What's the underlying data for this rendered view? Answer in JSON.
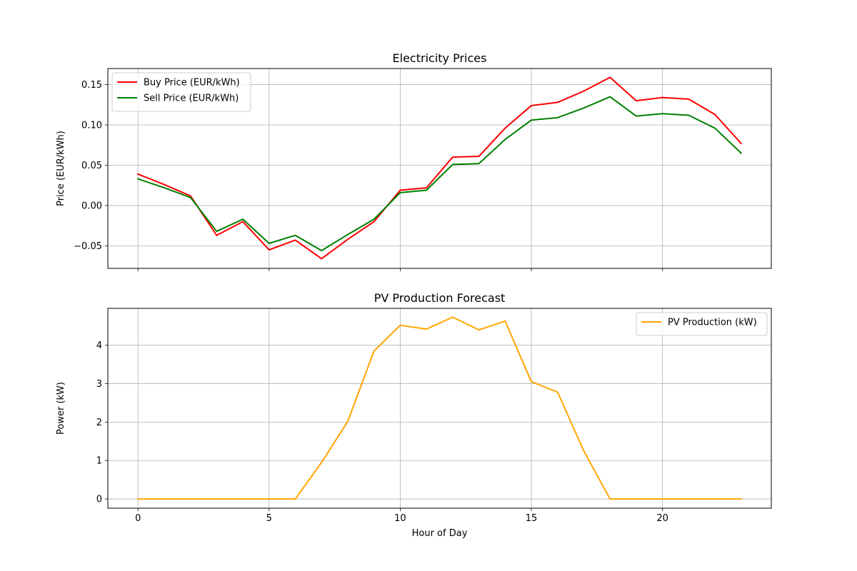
{
  "chart_data": [
    {
      "type": "line",
      "title": "Electricity Prices",
      "xlabel": "",
      "ylabel": "Price (EUR/kWh)",
      "xlim": [
        -1.15,
        24.15
      ],
      "ylim": [
        -0.078,
        0.17
      ],
      "x_ticks": [
        0,
        5,
        10,
        15,
        20
      ],
      "x_tick_labels": [
        "",
        "",
        "",
        "",
        ""
      ],
      "y_ticks": [
        -0.05,
        0.0,
        0.05,
        0.1,
        0.15
      ],
      "y_tick_labels": [
        "−0.05",
        "0.00",
        "0.05",
        "0.10",
        "0.15"
      ],
      "grid": true,
      "legend_position": "upper-left",
      "x": [
        0,
        1,
        2,
        3,
        4,
        5,
        6,
        7,
        8,
        9,
        10,
        11,
        12,
        13,
        14,
        15,
        16,
        17,
        18,
        19,
        20,
        21,
        22,
        23
      ],
      "series": [
        {
          "name": "Buy Price (EUR/kWh)",
          "color": "#ff0000",
          "values": [
            0.039,
            0.026,
            0.012,
            -0.037,
            -0.02,
            -0.055,
            -0.043,
            -0.066,
            -0.042,
            -0.02,
            0.019,
            0.022,
            0.06,
            0.061,
            0.096,
            0.124,
            0.128,
            0.142,
            0.159,
            0.13,
            0.134,
            0.132,
            0.113,
            0.077
          ]
        },
        {
          "name": "Sell Price (EUR/kWh)",
          "color": "#008000",
          "values": [
            0.033,
            0.022,
            0.01,
            -0.032,
            -0.017,
            -0.047,
            -0.037,
            -0.056,
            -0.036,
            -0.017,
            0.016,
            0.019,
            0.051,
            0.052,
            0.082,
            0.106,
            0.109,
            0.121,
            0.135,
            0.111,
            0.114,
            0.112,
            0.096,
            0.065
          ]
        }
      ]
    },
    {
      "type": "line",
      "title": "PV Production Forecast",
      "xlabel": "Hour of Day",
      "ylabel": "Power (kW)",
      "xlim": [
        -1.15,
        24.15
      ],
      "ylim": [
        -0.24,
        4.96
      ],
      "x_ticks": [
        0,
        5,
        10,
        15,
        20
      ],
      "x_tick_labels": [
        "0",
        "5",
        "10",
        "15",
        "20"
      ],
      "y_ticks": [
        0,
        1,
        2,
        3,
        4
      ],
      "y_tick_labels": [
        "0",
        "1",
        "2",
        "3",
        "4"
      ],
      "grid": true,
      "legend_position": "upper-right",
      "x": [
        0,
        1,
        2,
        3,
        4,
        5,
        6,
        7,
        8,
        9,
        10,
        11,
        12,
        13,
        14,
        15,
        16,
        17,
        18,
        19,
        20,
        21,
        22,
        23
      ],
      "series": [
        {
          "name": "PV Production (kW)",
          "color": "#ffa500",
          "values": [
            0,
            0,
            0,
            0,
            0,
            0,
            0,
            0.95,
            2.02,
            3.85,
            4.52,
            4.42,
            4.73,
            4.4,
            4.63,
            3.05,
            2.78,
            1.25,
            0,
            0,
            0,
            0,
            0,
            0
          ]
        }
      ]
    }
  ]
}
